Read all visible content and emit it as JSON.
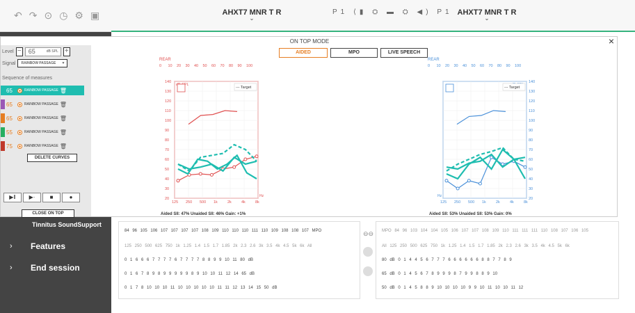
{
  "topbar": {
    "left_device": "AHXT7 MNR T R",
    "right_device": "AHXT7 MNR T R",
    "program_indicator": "P1  ⟨▮  ⛭  ▬  ⛭  ◀)  P1"
  },
  "sidebar": {
    "tinnitus": "Tinnitus SoundSupport",
    "features": "Features",
    "end_session": "End session"
  },
  "modal": {
    "title": "ON TOP MODE",
    "close": "×",
    "tabs": [
      "AIDED",
      "MPO",
      "LIVE SPEECH"
    ],
    "level_label": "Level",
    "level_value": "65",
    "level_unit": "dB SPL",
    "signal_label": "Signal",
    "signal_value": "RAINBOW PASSAGE",
    "seq_title": "Sequence of measures",
    "sequences": [
      {
        "num": "65",
        "label": "RAINBOW PASSAGE",
        "color": "#1fbdb0"
      },
      {
        "num": "65",
        "label": "RAINBOW PASSAGE",
        "color": "#9b59b6"
      },
      {
        "num": "65",
        "label": "RAINBOW PASSAGE",
        "color": "#e67e22"
      },
      {
        "num": "55",
        "label": "RAINBOW PASSAGE",
        "color": "#27ae60"
      },
      {
        "num": "75",
        "label": "RAINBOW PASSAGE",
        "color": "#c0392b"
      }
    ],
    "delete_curves": "DELETE CURVES",
    "close_on_top": "CLOSE ON TOP"
  },
  "chart_data": [
    {
      "type": "line",
      "side": "right",
      "title": "REAR",
      "top_ticks": [
        "0",
        "10",
        "20",
        "30",
        "40",
        "50",
        "60",
        "70",
        "80",
        "90",
        "100"
      ],
      "ylabel": "dB SPL",
      "ylim": [
        20,
        140
      ],
      "y_ticks": [
        "140",
        "130",
        "120",
        "110",
        "100",
        "90",
        "80",
        "70",
        "60",
        "50",
        "40",
        "30",
        "20"
      ],
      "x_ticks": [
        "125",
        "250",
        "500",
        "1k",
        "2k",
        "4k",
        "8k"
      ],
      "xunit": "Hz",
      "legend": "Target",
      "footer": "Aided SII: 47%   Unaided SII: 46%   Gain: +1%",
      "series": [
        {
          "color": "#e05050",
          "values": [
            96,
            105,
            106,
            110,
            109
          ]
        },
        {
          "color": "#e05050",
          "values": [
            38,
            44,
            45,
            44,
            50,
            52,
            60,
            63
          ]
        },
        {
          "color": "#1fbdb0",
          "dashed": true,
          "values": [
            55,
            48,
            62,
            64,
            66,
            75,
            70,
            58
          ]
        },
        {
          "color": "#1fbdb0",
          "values": [
            50,
            45,
            60,
            58,
            50,
            55,
            64,
            46,
            40
          ]
        },
        {
          "color": "#1fbdb0",
          "values": [
            55,
            50,
            52,
            55,
            48,
            62,
            55,
            58
          ]
        }
      ]
    },
    {
      "type": "line",
      "side": "left",
      "title": "REAR",
      "top_ticks": [
        "0",
        "10",
        "20",
        "30",
        "40",
        "50",
        "60",
        "70",
        "80",
        "90",
        "100"
      ],
      "ylabel": "dB SPL",
      "ylim": [
        20,
        140
      ],
      "y_ticks": [
        "140",
        "130",
        "120",
        "110",
        "100",
        "90",
        "80",
        "70",
        "60",
        "50",
        "40",
        "30",
        "20"
      ],
      "x_ticks": [
        "125",
        "250",
        "500",
        "1k",
        "2k",
        "4k",
        "8k"
      ],
      "xunit": "Hz",
      "legend": "Target",
      "footer": "Aided SII: 53%   Unaided SII: 53%   Gain: 0%",
      "series": [
        {
          "color": "#4a90d9",
          "values": [
            96,
            104,
            105,
            110,
            109
          ]
        },
        {
          "color": "#4a90d9",
          "values": [
            38,
            30,
            38,
            35,
            62,
            55,
            58,
            52
          ]
        },
        {
          "color": "#1fbdb0",
          "dashed": true,
          "values": [
            48,
            55,
            60,
            65,
            68,
            72,
            60,
            58
          ]
        },
        {
          "color": "#1fbdb0",
          "values": [
            45,
            40,
            55,
            62,
            50,
            70,
            60,
            40
          ]
        },
        {
          "color": "#1fbdb0",
          "values": [
            52,
            50,
            56,
            58,
            65,
            52,
            60,
            62
          ]
        }
      ]
    }
  ],
  "table_left": {
    "rows": [
      "84 96 105 106 107 107 107 107 108 109 110 110 110 111 110 109 108 108 107 MPO",
      "125 250 500 625 750 1k 1.25 1.4 1.5 1.7 1.85 2k 2.3 2.6 3k 3.5 4k 4.5 5k 6k All",
      "0 1 6 6 6 7 7 7 7 6 7 7 7 7 8 8 9 9 10 11 80 dB",
      "0 1 6 7 8 9 8 9 9 9 9 9 8 9 10 10 11 12 14 65 dB",
      "0 1 7 8 10 10 10 11 10 10 10 10 10 11 11 12 13 14 15 50 dB"
    ]
  },
  "table_right": {
    "rows": [
      "MPO 84 96 103 104 104 105 106 107 107 108 109 110 111 111 111 110 108 107 106 105",
      "All 125 250 500 625 750 1k 1.25 1.4 1.5 1.7 1.85 2k 2.3 2.6 3k 3.5 4k 4.5 5k 6k",
      "80 dB 0 1 4 4 5 6 7 7 7 6 6 6 6 6 6 8 8 7 7 8 9",
      "65 dB 0 1 4 5 6 7 8 9 9 9 8 7 9 9 8 8 9 10",
      "50 dB 0 1 4 5 8 8 9 10 10 10 10 9 9 10 11 10 10 11 12"
    ]
  }
}
